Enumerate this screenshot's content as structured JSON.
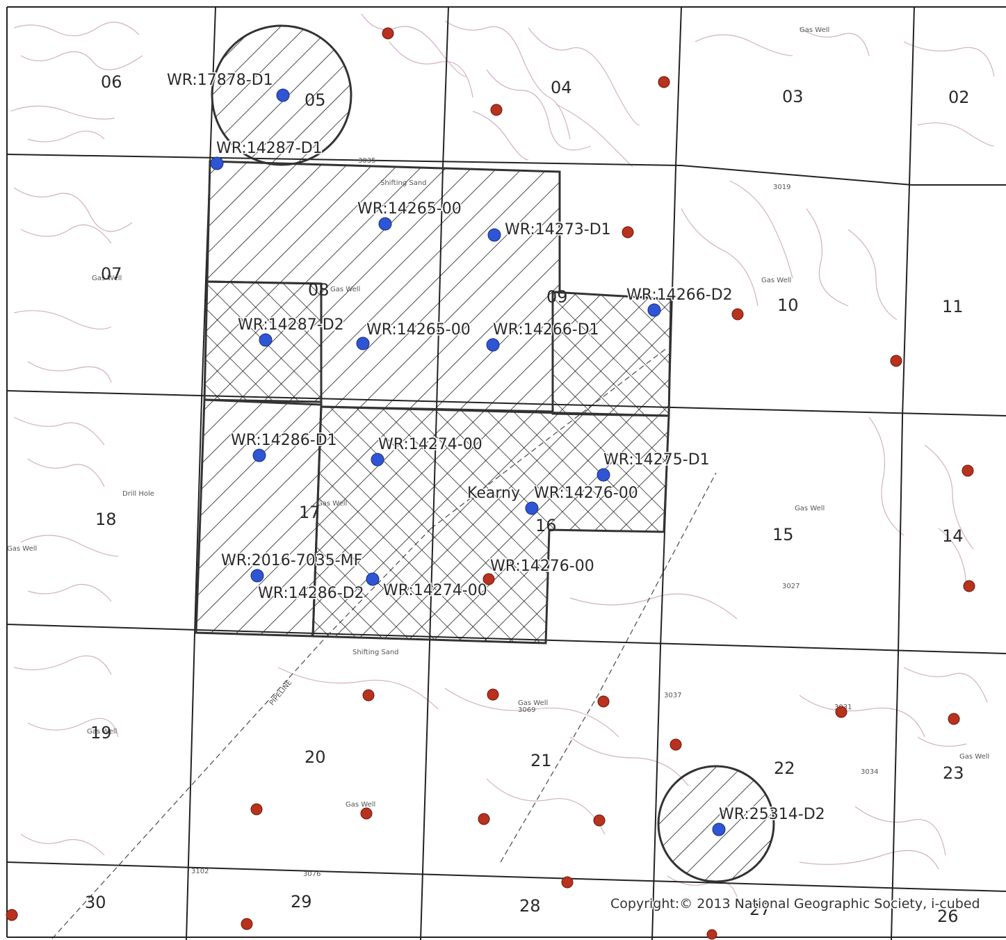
{
  "colors": {
    "permitted_well": "#2f55d4",
    "other_well": "#b8321e",
    "topo": "#c9a3b8",
    "section_line": "#222222"
  },
  "sections": [
    "06",
    "05",
    "04",
    "03",
    "02",
    "07",
    "08",
    "09",
    "10",
    "11",
    "18",
    "17",
    "16",
    "15",
    "14",
    "19",
    "20",
    "21",
    "22",
    "23",
    "30",
    "29",
    "28",
    "27",
    "26"
  ],
  "permits": [
    "WR:17878-D1",
    "WR:14287-D1",
    "WR:14265-00",
    "WR:14273-D1",
    "WR:14266-D2",
    "WR:14287-D2",
    "WR:14265-00",
    "WR:14266-D1",
    "WR:14286-D1",
    "WR:14274-00",
    "WR:14275-D1",
    "WR:14276-00",
    "WR:2016-7035-MF",
    "WR:14276-00",
    "WR:14286-D2",
    "WR:14274-00",
    "WR:25314-D2"
  ],
  "place_labels": [
    "Kearny",
    "Shifting Sand",
    "Shifting Sand",
    "Gas Well",
    "Gas Well",
    "Gas Well",
    "Gas Well",
    "Gas Well",
    "Gas Well",
    "Gas Well",
    "Gas Well",
    "Gas Well",
    "Gas Well",
    "Drill Hole",
    "PIPELINE"
  ],
  "elevations": [
    "3035",
    "3019",
    "3037",
    "3034",
    "3027",
    "3031",
    "3069",
    "3102",
    "3076"
  ],
  "copyright": "Copyright:© 2013 National Geographic Society, i-cubed"
}
